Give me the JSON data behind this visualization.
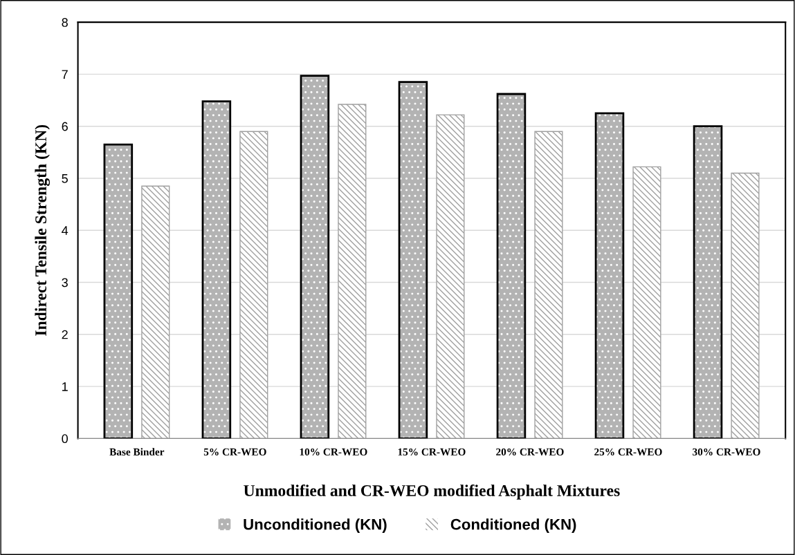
{
  "chart_data": {
    "type": "bar",
    "xlabel": "Unmodified and CR-WEO modified Asphalt Mixtures",
    "ylabel": "Indirect Tensile Strength (KN)",
    "categories": [
      "Base Binder",
      "5% CR-WEO",
      "10% CR-WEO",
      "15% CR-WEO",
      "20% CR-WEO",
      "25% CR-WEO",
      "30% CR-WEO"
    ],
    "series": [
      {
        "name": "Unconditioned (KN)",
        "color": "#b3b3b3",
        "values": [
          5.65,
          6.48,
          6.97,
          6.85,
          6.62,
          6.25,
          6.0
        ]
      },
      {
        "name": "Conditioned (KN)",
        "color": "#ffffff",
        "values": [
          4.85,
          5.9,
          6.42,
          6.22,
          5.9,
          5.22,
          5.1
        ]
      }
    ],
    "ylim": [
      0,
      8
    ],
    "yticks": [
      0,
      1,
      2,
      3,
      4,
      5,
      6,
      7,
      8
    ],
    "grid": "y",
    "legend": "bottom"
  }
}
